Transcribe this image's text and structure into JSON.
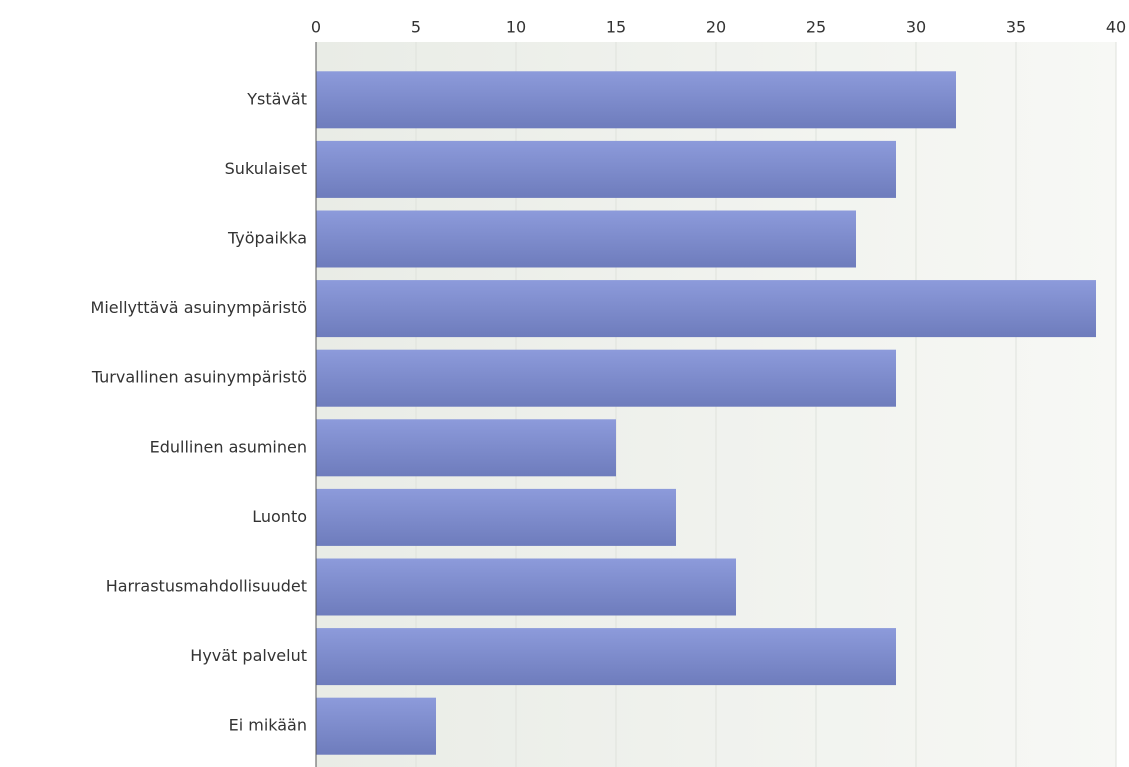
{
  "chart_data": {
    "type": "bar",
    "orientation": "horizontal",
    "categories": [
      "Ystävät",
      "Sukulaiset",
      "Työpaikka",
      "Miellyttävä asuinympäristö",
      "Turvallinen asuinympäristö",
      "Edullinen asuminen",
      "Luonto",
      "Harrastusmahdollisuudet",
      "Hyvät palvelut",
      "Ei mikään"
    ],
    "values": [
      32,
      29,
      27,
      39,
      29,
      15,
      18,
      21,
      29,
      6
    ],
    "color": "#7d8dd6",
    "xlim": [
      0,
      40
    ],
    "xticks": [
      0,
      5,
      10,
      15,
      20,
      25,
      30,
      35,
      40
    ],
    "grid": true
  }
}
